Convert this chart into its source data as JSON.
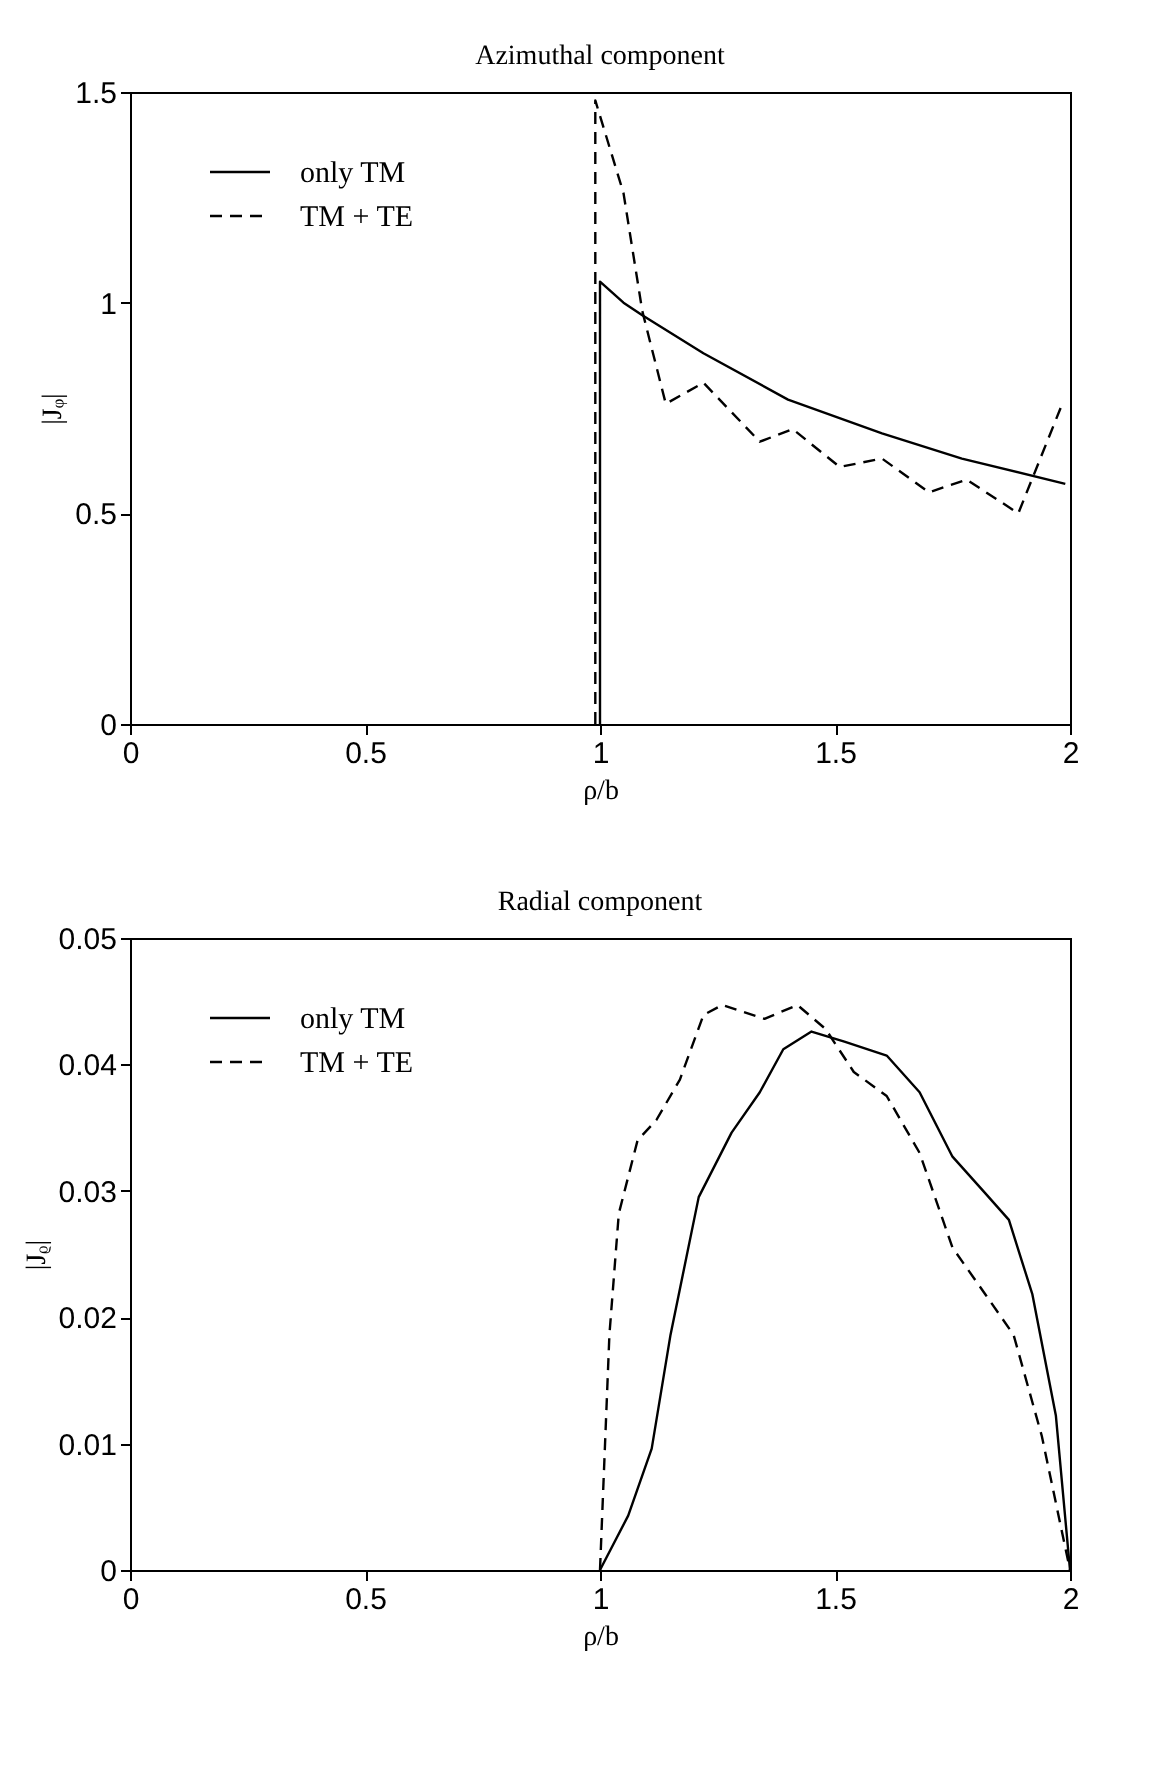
{
  "chart_data": [
    {
      "type": "line",
      "title": "Azimuthal component",
      "xlabel": "ρ/b",
      "ylabel": "|Jᵩ|",
      "xlim": [
        0,
        2
      ],
      "xticks": [
        0,
        0.5,
        1,
        1.5,
        2
      ],
      "ylim": [
        0,
        1.5
      ],
      "yticks": [
        0,
        0.5,
        1,
        1.5
      ],
      "grid": false,
      "legend": "top left",
      "marker": "none",
      "series": [
        {
          "name": "only TM",
          "color": "#000000",
          "line_style": "solid",
          "x": [
            1.0,
            1.0,
            1.05,
            1.09,
            1.22,
            1.4,
            1.6,
            1.77,
            1.99
          ],
          "values": [
            0,
            1.05,
            1.0,
            0.97,
            0.88,
            0.77,
            0.69,
            0.63,
            0.57
          ]
        },
        {
          "name": "TM + TE",
          "color": "#000000",
          "line_style": "dashed",
          "x": [
            0.99,
            0.99,
            1.05,
            1.09,
            1.14,
            1.22,
            1.34,
            1.41,
            1.51,
            1.6,
            1.7,
            1.78,
            1.89,
            1.98
          ],
          "values": [
            0,
            1.48,
            1.26,
            0.98,
            0.76,
            0.81,
            0.67,
            0.7,
            0.61,
            0.63,
            0.55,
            0.58,
            0.5,
            0.75
          ]
        }
      ]
    },
    {
      "type": "line",
      "title": "Radial component",
      "xlabel": "ρ/b",
      "ylabel": "|Jᵨ|",
      "xlim": [
        0,
        2
      ],
      "xticks": [
        0,
        0.5,
        1,
        1.5,
        2
      ],
      "ylim": [
        0,
        0.05
      ],
      "yticks": [
        0,
        0.01,
        0.02,
        0.03,
        0.04,
        0.05
      ],
      "grid": false,
      "legend": "top left",
      "marker": "none",
      "series": [
        {
          "name": "only TM",
          "color": "#000000",
          "line_style": "solid",
          "x": [
            1.0,
            1.06,
            1.11,
            1.15,
            1.21,
            1.28,
            1.34,
            1.39,
            1.45,
            1.52,
            1.61,
            1.68,
            1.75,
            1.82,
            1.87,
            1.92,
            1.97,
            2.0
          ],
          "values": [
            0,
            0.0043,
            0.0096,
            0.0186,
            0.0295,
            0.0346,
            0.0378,
            0.0412,
            0.0426,
            0.0418,
            0.0407,
            0.0378,
            0.0327,
            0.0298,
            0.0277,
            0.0218,
            0.0122,
            0
          ]
        },
        {
          "name": "TM + TE",
          "color": "#000000",
          "line_style": "dashed",
          "x": [
            1.0,
            1.02,
            1.04,
            1.08,
            1.12,
            1.17,
            1.22,
            1.26,
            1.35,
            1.42,
            1.48,
            1.54,
            1.61,
            1.68,
            1.75,
            1.82,
            1.88,
            1.94,
            2.0
          ],
          "values": [
            0,
            0.0186,
            0.0282,
            0.034,
            0.0356,
            0.0388,
            0.0439,
            0.0447,
            0.0436,
            0.0447,
            0.0428,
            0.0394,
            0.0375,
            0.033,
            0.0255,
            0.0218,
            0.0186,
            0.0106,
            0
          ]
        }
      ]
    }
  ]
}
